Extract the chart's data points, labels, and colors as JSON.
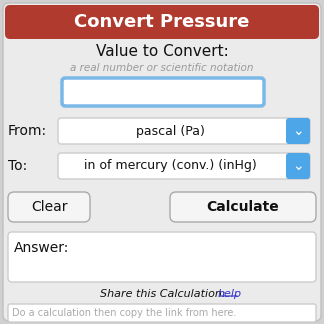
{
  "title": "Convert Pressure",
  "title_bg": "#b03a2e",
  "title_color": "#ffffff",
  "title_fontsize": 13,
  "bg_color": "#e5e5e5",
  "outer_bg": "#d0d0d0",
  "label_value_to_convert": "Value to Convert:",
  "label_subtitle": "a real number or scientific notation",
  "label_from": "From:",
  "from_value": "pascal (Pa)",
  "label_to": "To:",
  "to_value": "in of mercury (conv.) (inHg)",
  "btn_clear": "Clear",
  "btn_calculate": "Calculate",
  "answer_label": "Answer:",
  "share_text": "Share this Calculation: ",
  "share_link": "help",
  "share_link_color": "#3333cc",
  "placeholder_text": "Do a calculation then copy the link from here.",
  "placeholder_color": "#aaaaaa",
  "input_border_color": "#7ab8e8",
  "dropdown_bg": "#4da6e8",
  "text_color": "#111111",
  "subtitle_color": "#999999",
  "answer_box_bg": "#ffffff",
  "btn_bg": "#f5f5f5",
  "btn_border": "#aaaaaa",
  "widget_bg": "#ebebeb",
  "widget_border": "#c0c0c0"
}
